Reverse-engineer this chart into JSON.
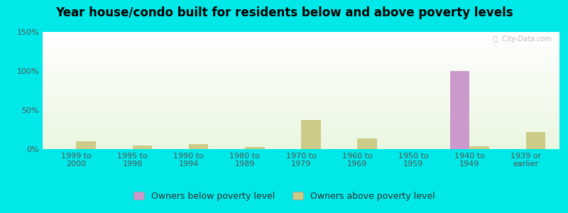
{
  "title": "Year house/condo built for residents below and above poverty levels",
  "categories": [
    "1999 to\n2000",
    "1995 to\n1998",
    "1990 to\n1994",
    "1980 to\n1989",
    "1970 to\n1979",
    "1960 to\n1969",
    "1950 to\n1959",
    "1940 to\n1949",
    "1939 or\nearlier"
  ],
  "below_poverty": [
    0,
    0,
    0,
    0,
    0,
    0,
    0,
    100,
    0
  ],
  "above_poverty": [
    10,
    5,
    6,
    3,
    37,
    14,
    0,
    4,
    22
  ],
  "below_color": "#cc99cc",
  "above_color": "#cccc88",
  "ylim": [
    0,
    150
  ],
  "yticks": [
    0,
    50,
    100,
    150
  ],
  "ytick_labels": [
    "0%",
    "50%",
    "100%",
    "150%"
  ],
  "outer_background": "#00e8e8",
  "bar_width": 0.35,
  "title_fontsize": 12,
  "tick_fontsize": 8,
  "legend_fontsize": 9,
  "watermark": "ⓘ  City-Data.com"
}
